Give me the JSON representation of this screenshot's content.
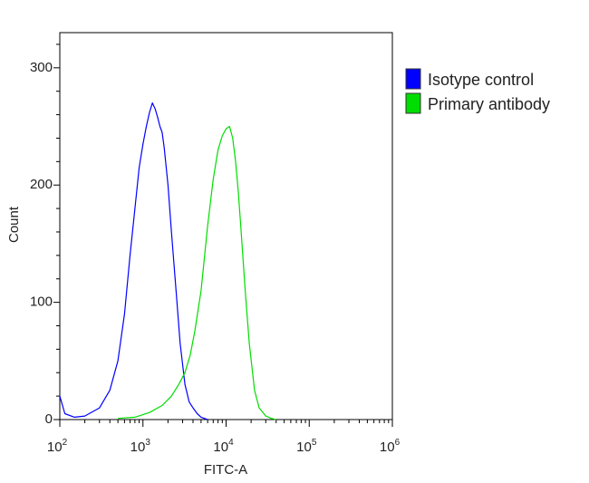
{
  "chart_data": {
    "type": "line",
    "xlabel": "FITC-A",
    "ylabel": "Count",
    "x_scale": "log",
    "xlim": [
      100,
      1000000
    ],
    "ylim": [
      0,
      330
    ],
    "x_ticks": [
      {
        "base": "10",
        "exp": "2",
        "value": 100
      },
      {
        "base": "10",
        "exp": "3",
        "value": 1000
      },
      {
        "base": "10",
        "exp": "4",
        "value": 10000
      },
      {
        "base": "10",
        "exp": "5",
        "value": 100000
      },
      {
        "base": "10",
        "exp": "6",
        "value": 1000000
      }
    ],
    "y_ticks": [
      {
        "label": "0",
        "value": 0
      },
      {
        "label": "100",
        "value": 100
      },
      {
        "label": "200",
        "value": 200
      },
      {
        "label": "300",
        "value": 300
      }
    ],
    "legend_position": "right",
    "series": [
      {
        "name": "Isotype control",
        "color": "#0000ff",
        "x": [
          100,
          115,
          150,
          200,
          300,
          400,
          500,
          600,
          700,
          800,
          900,
          1000,
          1100,
          1200,
          1300,
          1400,
          1500,
          1600,
          1700,
          1800,
          2000,
          2200,
          2500,
          2800,
          3200,
          3600,
          4000,
          4500,
          5000,
          6000
        ],
        "y": [
          20,
          5,
          2,
          3,
          10,
          25,
          50,
          90,
          140,
          180,
          215,
          235,
          250,
          262,
          270,
          265,
          258,
          250,
          245,
          232,
          200,
          160,
          110,
          65,
          30,
          15,
          10,
          5,
          2,
          0
        ]
      },
      {
        "name": "Primary antibody",
        "color": "#00dd00",
        "x": [
          500,
          800,
          1200,
          1700,
          2200,
          2700,
          3200,
          3700,
          4200,
          5000,
          6000,
          7000,
          8000,
          9000,
          10000,
          11000,
          12000,
          13000,
          14000,
          15000,
          17000,
          19000,
          22000,
          25000,
          30000,
          35000,
          40000
        ],
        "y": [
          1,
          2,
          6,
          12,
          20,
          30,
          40,
          55,
          75,
          110,
          165,
          205,
          230,
          242,
          248,
          250,
          240,
          220,
          195,
          165,
          110,
          65,
          25,
          10,
          3,
          1,
          0
        ]
      }
    ]
  }
}
